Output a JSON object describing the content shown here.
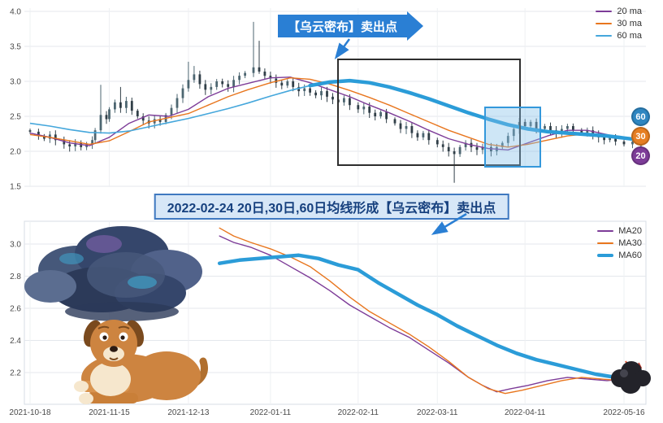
{
  "colors": {
    "accent_blue": "#2a7fd4",
    "ma20": "#7d3c98",
    "ma30": "#e8761e",
    "ma60": "#2b9cd8",
    "candle_up": "#4d6671",
    "candle_down": "#313f48",
    "highlight_box": "#3498db",
    "annotation_box": "#2e2e2e"
  },
  "top_chart": {
    "callout_text": "【乌云密布】卖出点",
    "legend": [
      {
        "label": "20 ma",
        "color": "#7d3c98",
        "thick": false
      },
      {
        "label": "30 ma",
        "color": "#e8761e",
        "thick": false
      },
      {
        "label": "60 ma",
        "color": "#45a7dc",
        "thick": false
      }
    ],
    "badges": [
      {
        "label": "60",
        "color": "#2e86c1"
      },
      {
        "label": "30",
        "color": "#e67e22"
      },
      {
        "label": "20",
        "color": "#7d3c98"
      }
    ]
  },
  "banner": {
    "text": "2022-02-24 20日,30日,60日均线形成【乌云密布】卖出点"
  },
  "bottom_chart": {
    "legend": [
      {
        "label": "MA20",
        "color": "#7d3c98",
        "thick": false
      },
      {
        "label": "MA30",
        "color": "#e8761e",
        "thick": false
      },
      {
        "label": "MA60",
        "color": "#2b9cd8",
        "thick": true
      }
    ]
  },
  "chart_data": [
    {
      "type": "candlestick",
      "title": "",
      "x_unit": "days since 2021-10-18",
      "x_tick_days": [
        0,
        28,
        56,
        85,
        116,
        144,
        175,
        210
      ],
      "x_tick_labels": [
        "2021-10-18",
        "2021-11-15",
        "2021-12-13",
        "2022-01-11",
        "2022-02-11",
        "2022-03-11",
        "2022-04-11",
        "2022-05-16"
      ],
      "ylim": [
        1.5,
        4.0
      ],
      "y_ticks": [
        4.0,
        3.5,
        3.0,
        2.5,
        2.0,
        1.5
      ],
      "grid": true,
      "close_path": [
        [
          0,
          2.28
        ],
        [
          3,
          2.22
        ],
        [
          5,
          2.18
        ],
        [
          7,
          2.24
        ],
        [
          9,
          2.16
        ],
        [
          12,
          2.1
        ],
        [
          14,
          2.07
        ],
        [
          16,
          2.12
        ],
        [
          18,
          2.06
        ],
        [
          20,
          2.1
        ],
        [
          22,
          2.16
        ],
        [
          23,
          2.3
        ],
        [
          25,
          2.52
        ],
        [
          27,
          2.46
        ],
        [
          28,
          2.6
        ],
        [
          30,
          2.7
        ],
        [
          32,
          2.62
        ],
        [
          34,
          2.72
        ],
        [
          36,
          2.58
        ],
        [
          38,
          2.5
        ],
        [
          40,
          2.44
        ],
        [
          42,
          2.4
        ],
        [
          44,
          2.46
        ],
        [
          46,
          2.42
        ],
        [
          48,
          2.52
        ],
        [
          50,
          2.62
        ],
        [
          52,
          2.76
        ],
        [
          54,
          2.9
        ],
        [
          56,
          3.02
        ],
        [
          58,
          3.1
        ],
        [
          60,
          2.96
        ],
        [
          62,
          2.88
        ],
        [
          64,
          2.92
        ],
        [
          66,
          3.0
        ],
        [
          68,
          2.96
        ],
        [
          70,
          2.92
        ],
        [
          72,
          3.02
        ],
        [
          74,
          3.08
        ],
        [
          76,
          3.12
        ],
        [
          79,
          3.2
        ],
        [
          81,
          3.14
        ],
        [
          83,
          3.08
        ],
        [
          85,
          3.04
        ],
        [
          87,
          2.98
        ],
        [
          89,
          2.94
        ],
        [
          91,
          3.0
        ],
        [
          93,
          2.92
        ],
        [
          95,
          2.86
        ],
        [
          97,
          2.9
        ],
        [
          99,
          2.84
        ],
        [
          101,
          2.8
        ],
        [
          103,
          2.86
        ],
        [
          105,
          2.78
        ],
        [
          107,
          2.74
        ],
        [
          109,
          2.7
        ],
        [
          111,
          2.76
        ],
        [
          113,
          2.66
        ],
        [
          116,
          2.6
        ],
        [
          118,
          2.64
        ],
        [
          120,
          2.55
        ],
        [
          122,
          2.5
        ],
        [
          124,
          2.56
        ],
        [
          126,
          2.46
        ],
        [
          129,
          2.4
        ],
        [
          131,
          2.32
        ],
        [
          133,
          2.36
        ],
        [
          135,
          2.26
        ],
        [
          137,
          2.2
        ],
        [
          139,
          2.26
        ],
        [
          141,
          2.16
        ],
        [
          144,
          2.1
        ],
        [
          146,
          2.06
        ],
        [
          148,
          2.0
        ],
        [
          150,
          1.96
        ],
        [
          152,
          2.06
        ],
        [
          154,
          2.12
        ],
        [
          156,
          2.06
        ],
        [
          158,
          2.02
        ],
        [
          160,
          2.06
        ],
        [
          163,
          2.0
        ],
        [
          165,
          2.06
        ],
        [
          167,
          2.12
        ],
        [
          169,
          2.22
        ],
        [
          171,
          2.32
        ],
        [
          173,
          2.42
        ],
        [
          175,
          2.36
        ],
        [
          177,
          2.42
        ],
        [
          179,
          2.32
        ],
        [
          182,
          2.36
        ],
        [
          184,
          2.3
        ],
        [
          186,
          2.26
        ],
        [
          188,
          2.32
        ],
        [
          190,
          2.36
        ],
        [
          192,
          2.3
        ],
        [
          195,
          2.26
        ],
        [
          197,
          2.3
        ],
        [
          199,
          2.24
        ],
        [
          201,
          2.2
        ],
        [
          203,
          2.16
        ],
        [
          205,
          2.2
        ],
        [
          207,
          2.14
        ],
        [
          210,
          2.1
        ],
        [
          213,
          2.14
        ],
        [
          216,
          2.08
        ]
      ],
      "wick_overrides": {
        "25": {
          "h": 2.95
        },
        "32": {
          "h": 2.92
        },
        "56": {
          "h": 3.28
        },
        "58": {
          "h": 3.22
        },
        "79": {
          "h": 3.85
        },
        "81": {
          "h": 3.58
        },
        "150": {
          "l": 1.55
        }
      },
      "series": [
        {
          "name": "20 ma",
          "color": "#7d3c98",
          "width": 1.4,
          "points": [
            [
              0,
              2.26
            ],
            [
              7,
              2.2
            ],
            [
              14,
              2.12
            ],
            [
              21,
              2.08
            ],
            [
              28,
              2.2
            ],
            [
              35,
              2.4
            ],
            [
              42,
              2.52
            ],
            [
              49,
              2.5
            ],
            [
              56,
              2.6
            ],
            [
              63,
              2.78
            ],
            [
              70,
              2.9
            ],
            [
              77,
              2.97
            ],
            [
              85,
              3.05
            ],
            [
              92,
              3.06
            ],
            [
              99,
              2.98
            ],
            [
              106,
              2.88
            ],
            [
              113,
              2.78
            ],
            [
              120,
              2.66
            ],
            [
              127,
              2.55
            ],
            [
              134,
              2.43
            ],
            [
              141,
              2.3
            ],
            [
              148,
              2.18
            ],
            [
              155,
              2.1
            ],
            [
              162,
              2.04
            ],
            [
              169,
              2.02
            ],
            [
              176,
              2.12
            ],
            [
              183,
              2.22
            ],
            [
              190,
              2.3
            ],
            [
              197,
              2.3
            ],
            [
              204,
              2.24
            ],
            [
              210,
              2.18
            ],
            [
              216,
              2.14
            ]
          ]
        },
        {
          "name": "30 ma",
          "color": "#e8761e",
          "width": 1.4,
          "points": [
            [
              0,
              2.24
            ],
            [
              7,
              2.2
            ],
            [
              14,
              2.15
            ],
            [
              21,
              2.1
            ],
            [
              28,
              2.15
            ],
            [
              35,
              2.28
            ],
            [
              42,
              2.42
            ],
            [
              49,
              2.48
            ],
            [
              56,
              2.54
            ],
            [
              63,
              2.66
            ],
            [
              70,
              2.78
            ],
            [
              77,
              2.88
            ],
            [
              85,
              2.98
            ],
            [
              92,
              3.05
            ],
            [
              99,
              3.03
            ],
            [
              106,
              2.96
            ],
            [
              113,
              2.87
            ],
            [
              120,
              2.77
            ],
            [
              127,
              2.66
            ],
            [
              134,
              2.54
            ],
            [
              141,
              2.42
            ],
            [
              148,
              2.3
            ],
            [
              155,
              2.2
            ],
            [
              162,
              2.1
            ],
            [
              169,
              2.06
            ],
            [
              176,
              2.1
            ],
            [
              183,
              2.16
            ],
            [
              190,
              2.22
            ],
            [
              197,
              2.25
            ],
            [
              204,
              2.23
            ],
            [
              210,
              2.19
            ],
            [
              216,
              2.15
            ]
          ]
        },
        {
          "name": "60 ma",
          "color": "#45a7dc",
          "width": 1.6,
          "thick_from_day": 98,
          "thick_width": 4.5,
          "points": [
            [
              0,
              2.4
            ],
            [
              7,
              2.36
            ],
            [
              14,
              2.31
            ],
            [
              21,
              2.27
            ],
            [
              28,
              2.26
            ],
            [
              35,
              2.29
            ],
            [
              42,
              2.35
            ],
            [
              49,
              2.41
            ],
            [
              56,
              2.47
            ],
            [
              63,
              2.54
            ],
            [
              70,
              2.61
            ],
            [
              77,
              2.69
            ],
            [
              85,
              2.79
            ],
            [
              92,
              2.87
            ],
            [
              99,
              2.94
            ],
            [
              106,
              2.99
            ],
            [
              113,
              3.01
            ],
            [
              120,
              2.98
            ],
            [
              127,
              2.92
            ],
            [
              134,
              2.84
            ],
            [
              141,
              2.75
            ],
            [
              148,
              2.65
            ],
            [
              155,
              2.55
            ],
            [
              162,
              2.46
            ],
            [
              169,
              2.38
            ],
            [
              176,
              2.32
            ],
            [
              183,
              2.28
            ],
            [
              190,
              2.26
            ],
            [
              197,
              2.24
            ],
            [
              204,
              2.22
            ],
            [
              210,
              2.19
            ],
            [
              216,
              2.16
            ]
          ]
        }
      ]
    },
    {
      "type": "line",
      "title": "",
      "x_unit": "days since 2021-10-18",
      "ylim": [
        2.0,
        3.14
      ],
      "y_ticks": [
        3.0,
        2.8,
        2.6,
        2.4,
        2.2
      ],
      "grid": true,
      "series": [
        {
          "name": "MA20",
          "color": "#7d3c98",
          "width": 1.4,
          "points": [
            [
              67,
              3.05
            ],
            [
              72,
              3.01
            ],
            [
              78,
              2.98
            ],
            [
              85,
              2.93
            ],
            [
              92,
              2.86
            ],
            [
              99,
              2.79
            ],
            [
              106,
              2.71
            ],
            [
              113,
              2.62
            ],
            [
              120,
              2.55
            ],
            [
              127,
              2.48
            ],
            [
              134,
              2.42
            ],
            [
              141,
              2.34
            ],
            [
              148,
              2.26
            ],
            [
              155,
              2.17
            ],
            [
              160,
              2.12
            ],
            [
              165,
              2.08
            ],
            [
              170,
              2.1
            ],
            [
              176,
              2.12
            ],
            [
              183,
              2.15
            ],
            [
              190,
              2.17
            ],
            [
              197,
              2.16
            ],
            [
              204,
              2.15
            ],
            [
              210,
              2.16
            ],
            [
              216,
              2.16
            ]
          ]
        },
        {
          "name": "MA30",
          "color": "#e8761e",
          "width": 1.4,
          "points": [
            [
              67,
              3.1
            ],
            [
              72,
              3.05
            ],
            [
              78,
              3.01
            ],
            [
              85,
              2.97
            ],
            [
              92,
              2.92
            ],
            [
              99,
              2.86
            ],
            [
              106,
              2.77
            ],
            [
              113,
              2.67
            ],
            [
              120,
              2.58
            ],
            [
              127,
              2.51
            ],
            [
              134,
              2.44
            ],
            [
              141,
              2.36
            ],
            [
              148,
              2.27
            ],
            [
              155,
              2.17
            ],
            [
              162,
              2.1
            ],
            [
              168,
              2.07
            ],
            [
              174,
              2.09
            ],
            [
              181,
              2.12
            ],
            [
              188,
              2.15
            ],
            [
              195,
              2.17
            ],
            [
              202,
              2.16
            ],
            [
              209,
              2.15
            ],
            [
              216,
              2.15
            ]
          ]
        },
        {
          "name": "MA60",
          "color": "#2b9cd8",
          "width": 4.5,
          "points": [
            [
              67,
              2.88
            ],
            [
              74,
              2.9
            ],
            [
              81,
              2.91
            ],
            [
              88,
              2.92
            ],
            [
              95,
              2.93
            ],
            [
              102,
              2.91
            ],
            [
              109,
              2.87
            ],
            [
              116,
              2.84
            ],
            [
              123,
              2.76
            ],
            [
              130,
              2.69
            ],
            [
              137,
              2.62
            ],
            [
              144,
              2.56
            ],
            [
              151,
              2.49
            ],
            [
              158,
              2.43
            ],
            [
              165,
              2.37
            ],
            [
              172,
              2.32
            ],
            [
              179,
              2.28
            ],
            [
              186,
              2.25
            ],
            [
              193,
              2.22
            ],
            [
              200,
              2.19
            ],
            [
              207,
              2.17
            ],
            [
              216,
              2.14
            ]
          ]
        }
      ]
    }
  ]
}
